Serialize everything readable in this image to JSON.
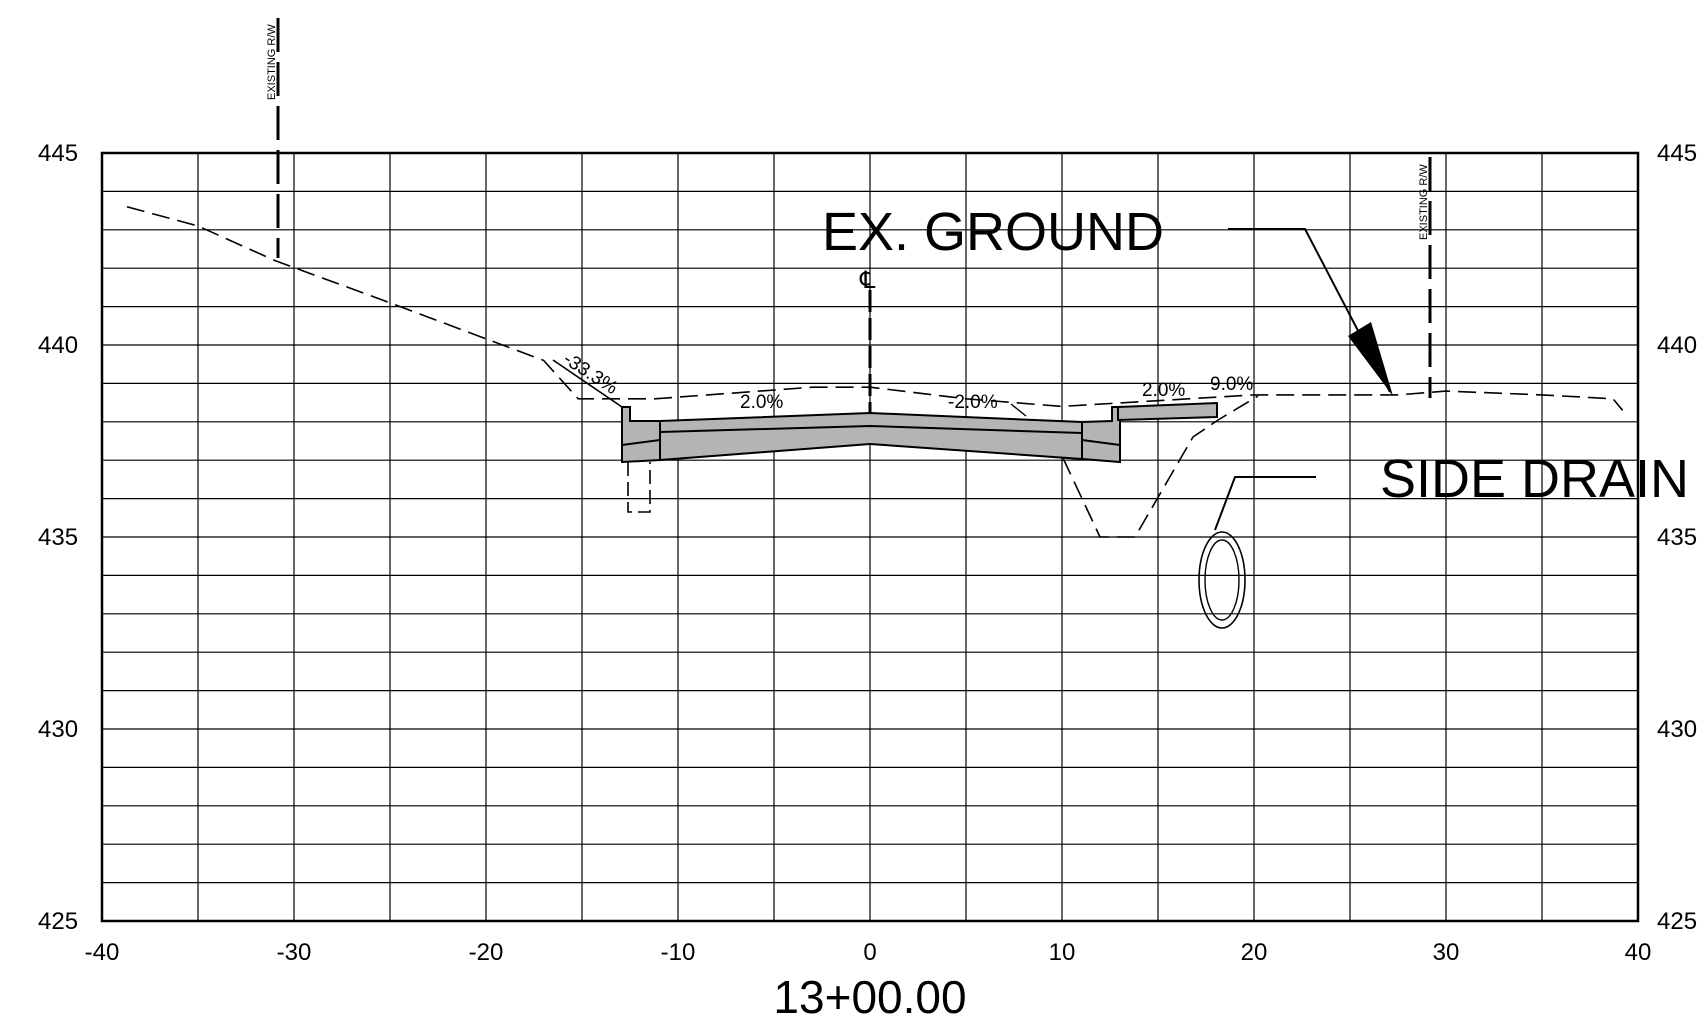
{
  "station": "13+00.00",
  "axes": {
    "x_ticks": [
      "-40",
      "-30",
      "-20",
      "-10",
      "0",
      "10",
      "20",
      "30",
      "40"
    ],
    "y_ticks": [
      "445",
      "440",
      "435",
      "430",
      "425"
    ],
    "x_range": [
      -40,
      40
    ],
    "y_range": [
      425,
      445
    ]
  },
  "labels": {
    "ex_ground": "EX. GROUND",
    "side_drain": "SIDE DRAIN",
    "existing_rw_left": "EXISTING R/W",
    "existing_rw_right": "EXISTING R/W",
    "centerline": "℄"
  },
  "slopes": {
    "left_cut": "-33.3%",
    "left_lane": "2.0%",
    "right_lane": "-2.0%",
    "right_shoulder": "2.0%",
    "right_slope": "9.0%"
  },
  "existing_ground": [
    [
      -38.7,
      443.6
    ],
    [
      -35,
      443.1
    ],
    [
      -31,
      442.2
    ],
    [
      -25,
      441.1
    ],
    [
      -17,
      439.6
    ],
    [
      -15.2,
      438.6
    ],
    [
      -11.2,
      438.6
    ],
    [
      -3,
      438.9
    ],
    [
      0,
      438.9
    ],
    [
      5,
      438.6
    ],
    [
      10,
      438.4
    ],
    [
      20,
      438.7
    ],
    [
      27.5,
      438.7
    ],
    [
      30,
      438.8
    ],
    [
      35,
      438.7
    ],
    [
      38.7,
      438.6
    ],
    [
      39.2,
      438.3
    ]
  ],
  "colors": {
    "pavement": "#b4b4b4",
    "line": "#000000",
    "background": "#ffffff"
  }
}
